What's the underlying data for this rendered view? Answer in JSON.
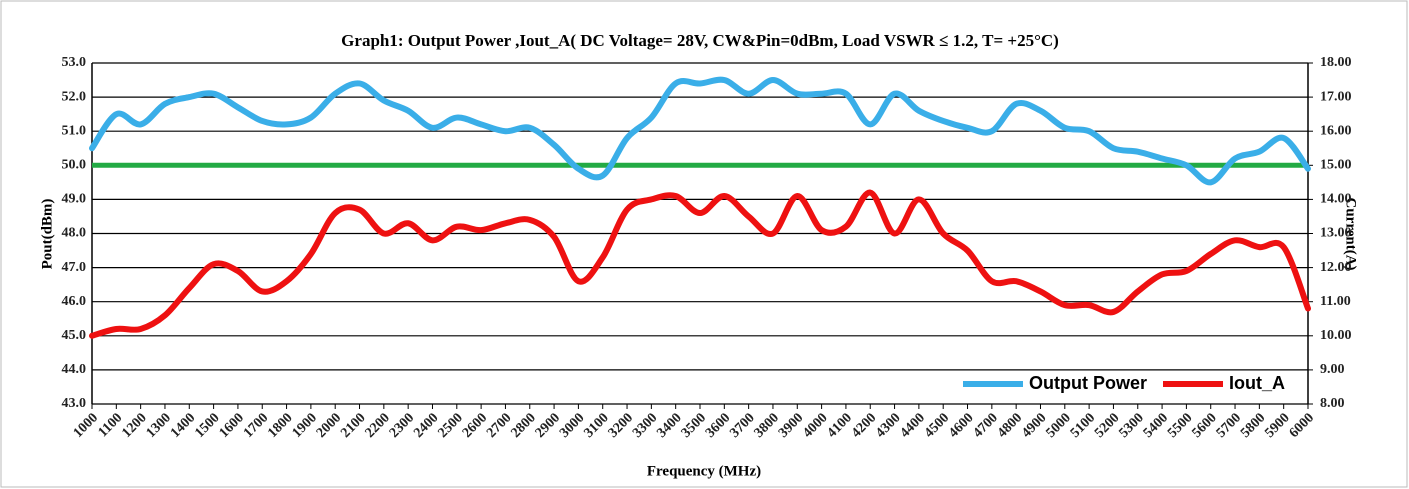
{
  "chart_data": {
    "type": "line",
    "title": "Graph1: Output Power ,Iout_A( DC Voltage= 28V, CW&Pin=0dBm, Load VSWR ≤ 1.2, T= +25°C)",
    "x_label": "Frequency (MHz)",
    "y_label": "Pout(dBm)",
    "y2_label": "Current(A)",
    "categories": [
      "1000",
      "1100",
      "1200",
      "1300",
      "1400",
      "1500",
      "1600",
      "1700",
      "1800",
      "1900",
      "2000",
      "2100",
      "2200",
      "2300",
      "2400",
      "2500",
      "2600",
      "2700",
      "2800",
      "2900",
      "3000",
      "3100",
      "3200",
      "3300",
      "3400",
      "3500",
      "3600",
      "3700",
      "3800",
      "3900",
      "4000",
      "4100",
      "4200",
      "4300",
      "4400",
      "4500",
      "4600",
      "4700",
      "4800",
      "4900",
      "5000",
      "5100",
      "5200",
      "5300",
      "5400",
      "5500",
      "5600",
      "5700",
      "5800",
      "5900",
      "6000"
    ],
    "series": [
      {
        "name": "Output Power",
        "color": "#3aaee8",
        "axis": "y",
        "values": [
          50.5,
          51.5,
          51.2,
          51.8,
          52.0,
          52.1,
          51.7,
          51.3,
          51.2,
          51.4,
          52.1,
          52.4,
          51.9,
          51.6,
          51.1,
          51.4,
          51.2,
          51.0,
          51.1,
          50.6,
          49.9,
          49.7,
          50.8,
          51.4,
          52.4,
          52.4,
          52.5,
          52.1,
          52.5,
          52.1,
          52.1,
          52.1,
          51.2,
          52.1,
          51.6,
          51.3,
          51.1,
          51.0,
          51.8,
          51.6,
          51.1,
          51.0,
          50.5,
          50.4,
          50.2,
          50.0,
          49.5,
          50.2,
          50.4,
          50.8,
          49.9
        ]
      },
      {
        "name": "Iout_A",
        "color": "#ee1111",
        "axis": "y2",
        "values": [
          10.0,
          10.2,
          10.2,
          10.6,
          11.4,
          12.1,
          11.9,
          11.3,
          11.6,
          12.4,
          13.6,
          13.7,
          13.0,
          13.3,
          12.8,
          13.2,
          13.1,
          13.3,
          13.4,
          12.9,
          11.6,
          12.3,
          13.7,
          14.0,
          14.1,
          13.6,
          14.1,
          13.5,
          13.0,
          14.1,
          13.1,
          13.2,
          14.2,
          13.0,
          14.0,
          13.0,
          12.5,
          11.6,
          11.6,
          11.3,
          10.9,
          10.9,
          10.7,
          11.3,
          11.8,
          11.9,
          12.4,
          12.8,
          12.6,
          12.6,
          10.8
        ]
      }
    ],
    "reference_line": {
      "value": 50,
      "color": "#22aa44"
    },
    "ylim": [
      43,
      53
    ],
    "yticks": [
      {
        "value": 43,
        "label": "43.0"
      },
      {
        "value": 44,
        "label": "44.0"
      },
      {
        "value": 45,
        "label": "45.0"
      },
      {
        "value": 46,
        "label": "46.0"
      },
      {
        "value": 47,
        "label": "47.0"
      },
      {
        "value": 48,
        "label": "48.0"
      },
      {
        "value": 49,
        "label": "49.0"
      },
      {
        "value": 50,
        "label": "50.0"
      },
      {
        "value": 51,
        "label": "51.0"
      },
      {
        "value": 52,
        "label": "52.0"
      },
      {
        "value": 53,
        "label": "53.0"
      }
    ],
    "y2lim": [
      8,
      18
    ],
    "y2ticks": [
      {
        "value": 8,
        "label": "8.00"
      },
      {
        "value": 9,
        "label": "9.00"
      },
      {
        "value": 10,
        "label": "10.00"
      },
      {
        "value": 11,
        "label": "11.00"
      },
      {
        "value": 12,
        "label": "12.00"
      },
      {
        "value": 13,
        "label": "13.00"
      },
      {
        "value": 14,
        "label": "14.00"
      },
      {
        "value": 15,
        "label": "15.00"
      },
      {
        "value": 16,
        "label": "16.00"
      },
      {
        "value": 17,
        "label": "17.00"
      },
      {
        "value": 18,
        "label": "18.00"
      }
    ],
    "grid": true,
    "legend": "bottom-right"
  }
}
